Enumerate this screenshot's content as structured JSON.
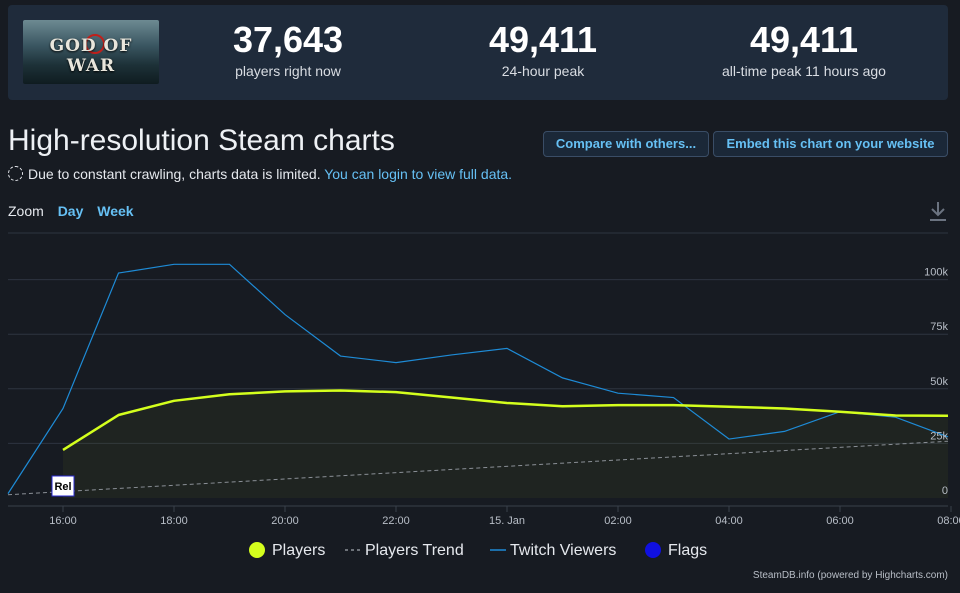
{
  "stats": [
    {
      "value": "37,643",
      "label": "players right now"
    },
    {
      "value": "49,411",
      "label": "24-hour peak"
    },
    {
      "value": "49,411",
      "label": "all-time peak 11 hours ago"
    }
  ],
  "game_logo_text": "GOD OF WAR",
  "page_title": "High-resolution Steam charts",
  "buttons": {
    "compare": "Compare with others...",
    "embed": "Embed this chart on your website"
  },
  "notice": {
    "text": "Due to constant crawling, charts data is limited.",
    "link": "You can login to view full data."
  },
  "zoom": {
    "label": "Zoom",
    "day": "Day",
    "week": "Week"
  },
  "credits": "SteamDB.info (powered by Highcharts.com)",
  "colors": {
    "players": "#d4ff1d",
    "twitch": "#1e8bd6",
    "trend": "#8a8f96",
    "flags": "#1010e0"
  },
  "chart_data": {
    "type": "line",
    "x_unit": "hours since 16:00",
    "x_ticks": [
      "16:00",
      "18:00",
      "20:00",
      "22:00",
      "15. Jan",
      "02:00",
      "04:00",
      "06:00",
      "08:00"
    ],
    "y_ticks": [
      "0",
      "25k",
      "50k",
      "75k",
      "100k"
    ],
    "ylim": [
      0,
      125000
    ],
    "grid": true,
    "legend_position": "bottom-center",
    "series": [
      {
        "name": "Players",
        "x": [
          0,
          1,
          2,
          3,
          4,
          5,
          6,
          7,
          8,
          9,
          10,
          11,
          12,
          13,
          14,
          15,
          16
        ],
        "values": [
          22000,
          38000,
          44500,
          47500,
          48800,
          49200,
          48500,
          46000,
          43500,
          42000,
          42500,
          42500,
          41800,
          41000,
          39500,
          37800,
          37643
        ]
      },
      {
        "name": "Players Trend",
        "x": [
          -1,
          16
        ],
        "values": [
          1500,
          26000
        ]
      },
      {
        "name": "Twitch Viewers",
        "x": [
          -1,
          0,
          1,
          2,
          3,
          4,
          5,
          6,
          7,
          8,
          9,
          10,
          11,
          12,
          13,
          14,
          15,
          16
        ],
        "values": [
          2000,
          41000,
          103000,
          107000,
          107000,
          84000,
          65000,
          62000,
          65500,
          68500,
          55000,
          48000,
          46000,
          27000,
          30500,
          39500,
          37000,
          28000
        ]
      }
    ],
    "flags": [
      {
        "x": 0,
        "label": "Rel"
      }
    ],
    "legend": [
      "Players",
      "Players Trend",
      "Twitch Viewers",
      "Flags"
    ]
  }
}
